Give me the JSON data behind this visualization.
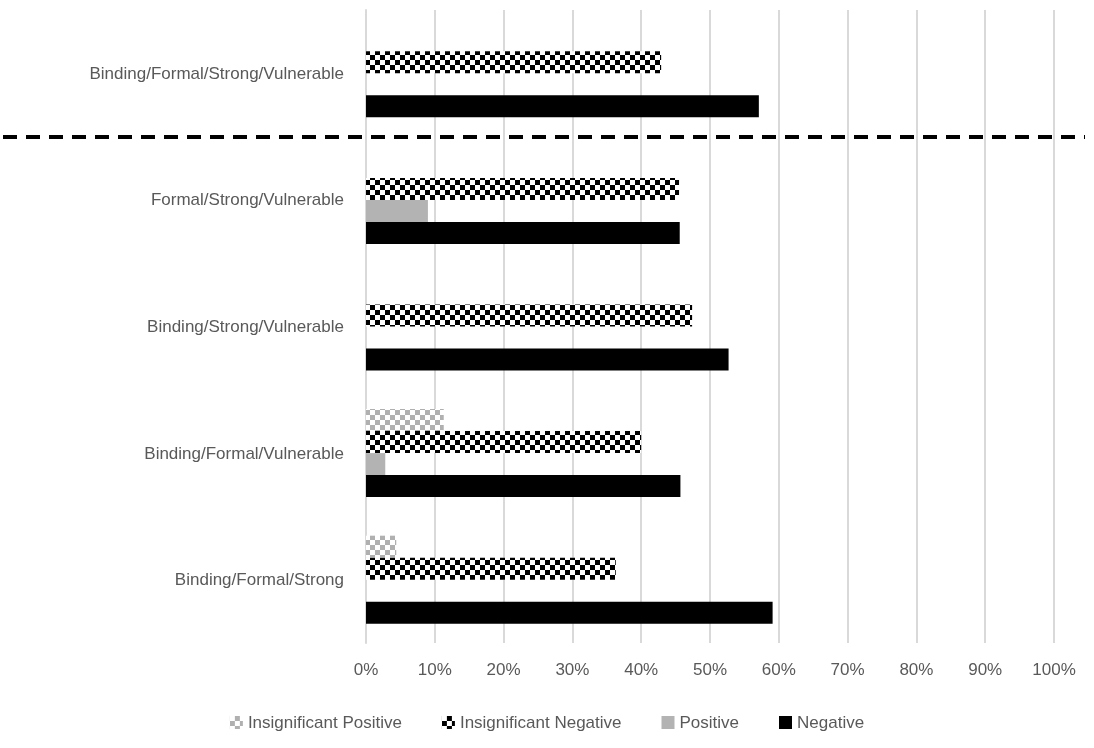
{
  "chart_data": {
    "type": "bar",
    "orientation": "horizontal",
    "categories": [
      "Binding/Formal/Strong/Vulnerable",
      "Formal/Strong/Vulnerable",
      "Binding/Strong/Vulnerable",
      "Binding/Formal/Vulnerable",
      "Binding/Formal/Strong"
    ],
    "series": [
      {
        "name": "Insignificant Positive",
        "color": "#b0b0b0",
        "values": [
          null,
          null,
          null,
          11.3,
          4.4
        ]
      },
      {
        "name": "Insignificant Negative",
        "color": "#000000",
        "values": [
          42.9,
          45.5,
          47.4,
          40.0,
          36.3
        ]
      },
      {
        "name": "Positive",
        "color": "#b3b3b3",
        "values": [
          null,
          9.0,
          null,
          2.8,
          null
        ]
      },
      {
        "name": "Negative",
        "color": "#000000",
        "values": [
          57.1,
          45.6,
          52.7,
          45.7,
          59.1
        ]
      }
    ],
    "xlim": [
      0,
      100
    ],
    "xticks": [
      {
        "value": 0,
        "label": "0%"
      },
      {
        "value": 10,
        "label": "10%"
      },
      {
        "value": 20,
        "label": "20%"
      },
      {
        "value": 30,
        "label": "30%"
      },
      {
        "value": 40,
        "label": "40%"
      },
      {
        "value": 50,
        "label": "50%"
      },
      {
        "value": 60,
        "label": "60%"
      },
      {
        "value": 70,
        "label": "70%"
      },
      {
        "value": 80,
        "label": "80%"
      },
      {
        "value": 90,
        "label": "90%"
      },
      {
        "value": 100,
        "label": "100%"
      }
    ],
    "grid": "x",
    "legend": "bottom"
  }
}
